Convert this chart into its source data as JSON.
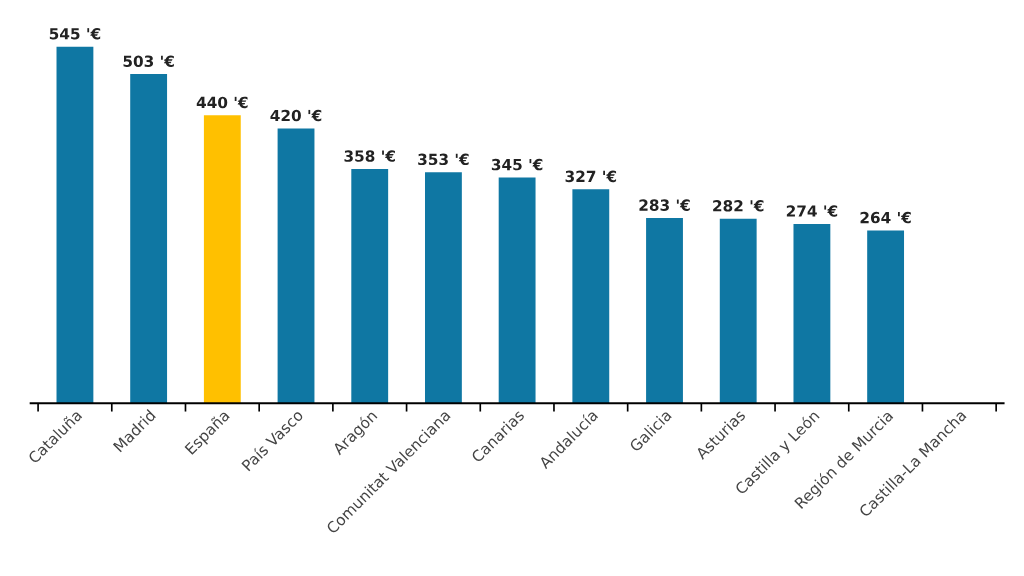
{
  "chart_data": {
    "type": "bar",
    "categories": [
      "Cataluña",
      "Madrid",
      "España",
      "País Vasco",
      "Aragón",
      "Comunitat Valenciana",
      "Canarias",
      "Andalucía",
      "Galicia",
      "Asturias",
      "Castilla y León",
      "Región de Murcia",
      "Castilla-La Mancha"
    ],
    "values": [
      545,
      503,
      440,
      420,
      358,
      353,
      345,
      327,
      283,
      282,
      274,
      264,
      null
    ],
    "colors": [
      "#0f77a3",
      "#0f77a3",
      "#ffc000",
      "#0f77a3",
      "#0f77a3",
      "#0f77a3",
      "#0f77a3",
      "#0f77a3",
      "#0f77a3",
      "#0f77a3",
      "#0f77a3",
      "#0f77a3",
      "#0f77a3"
    ],
    "value_labels": [
      "545 '€",
      "503 '€",
      "440 '€",
      "420 '€",
      "358 '€",
      "353 '€",
      "345 '€",
      "327 '€",
      "283 '€",
      "282 '€",
      "274 '€",
      "264 '€",
      null
    ],
    "tick_labels": "x",
    "grid": false,
    "legend": false
  }
}
